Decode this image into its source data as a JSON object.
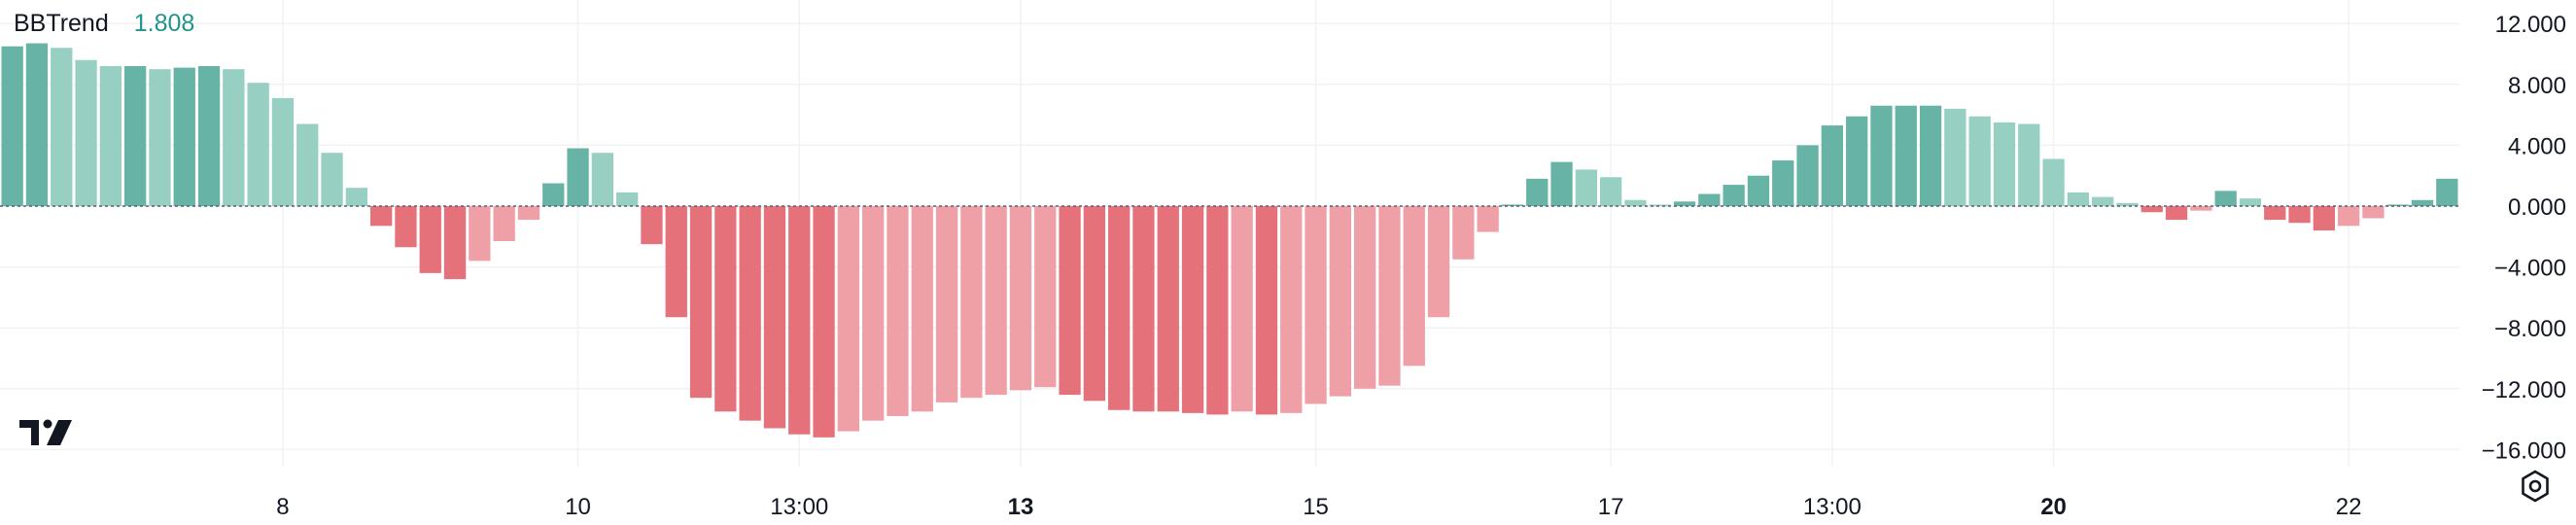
{
  "indicator": {
    "name": "BBTrend",
    "value": "1.808"
  },
  "colors": {
    "pos_strong": "#67b3a5",
    "pos_weak": "#97cfc3",
    "neg_strong": "#e5717b",
    "neg_weak": "#efa0a7",
    "value_text": "#3e9c7f",
    "grid": "#f0f2f5",
    "axis_text": "#131722"
  },
  "chart_data": {
    "type": "bar",
    "title": "",
    "xlabel": "",
    "ylabel": "",
    "ylim": [
      -17,
      13
    ],
    "y_ticks": [
      "12.000",
      "8.000",
      "4.000",
      "0.000",
      "−4.000",
      "−8.000",
      "−12.000",
      "−16.000"
    ],
    "x_ticks": [
      {
        "label": "8",
        "index": 11.5,
        "bold": false
      },
      {
        "label": "10",
        "index": 23.5,
        "bold": false
      },
      {
        "label": "13:00",
        "index": 32.5,
        "bold": false
      },
      {
        "label": "13",
        "index": 41.5,
        "bold": true
      },
      {
        "label": "15",
        "index": 53.5,
        "bold": false
      },
      {
        "label": "17",
        "index": 65.5,
        "bold": false
      },
      {
        "label": "13:00",
        "index": 74.5,
        "bold": false
      },
      {
        "label": "20",
        "index": 83.5,
        "bold": true
      },
      {
        "label": "22",
        "index": 95.5,
        "bold": false
      }
    ],
    "values": [
      10.5,
      10.7,
      10.4,
      9.6,
      9.2,
      9.2,
      9.0,
      9.1,
      9.2,
      9.0,
      8.1,
      7.1,
      5.4,
      3.5,
      1.2,
      -1.3,
      -2.7,
      -4.4,
      -4.8,
      -3.6,
      -2.3,
      -0.9,
      1.5,
      3.8,
      3.5,
      0.9,
      -2.5,
      -7.3,
      -12.6,
      -13.5,
      -14.1,
      -14.6,
      -15.0,
      -15.2,
      -14.8,
      -14.1,
      -13.8,
      -13.5,
      -12.9,
      -12.6,
      -12.4,
      -12.1,
      -11.9,
      -12.4,
      -12.8,
      -13.4,
      -13.5,
      -13.5,
      -13.6,
      -13.7,
      -13.5,
      -13.7,
      -13.6,
      -13.0,
      -12.5,
      -12.0,
      -11.8,
      -10.5,
      -7.3,
      -3.5,
      -1.7,
      0.1,
      1.8,
      2.9,
      2.4,
      1.9,
      0.4,
      0.1,
      0.3,
      0.8,
      1.4,
      2.0,
      3.0,
      4.0,
      5.3,
      5.9,
      6.6,
      6.6,
      6.6,
      6.4,
      5.9,
      5.5,
      5.4,
      3.1,
      0.9,
      0.6,
      0.2,
      -0.4,
      -0.9,
      -0.3,
      1.0,
      0.5,
      -0.9,
      -1.1,
      -1.6,
      -1.3,
      -0.8,
      0.1,
      0.4,
      1.8
    ]
  }
}
